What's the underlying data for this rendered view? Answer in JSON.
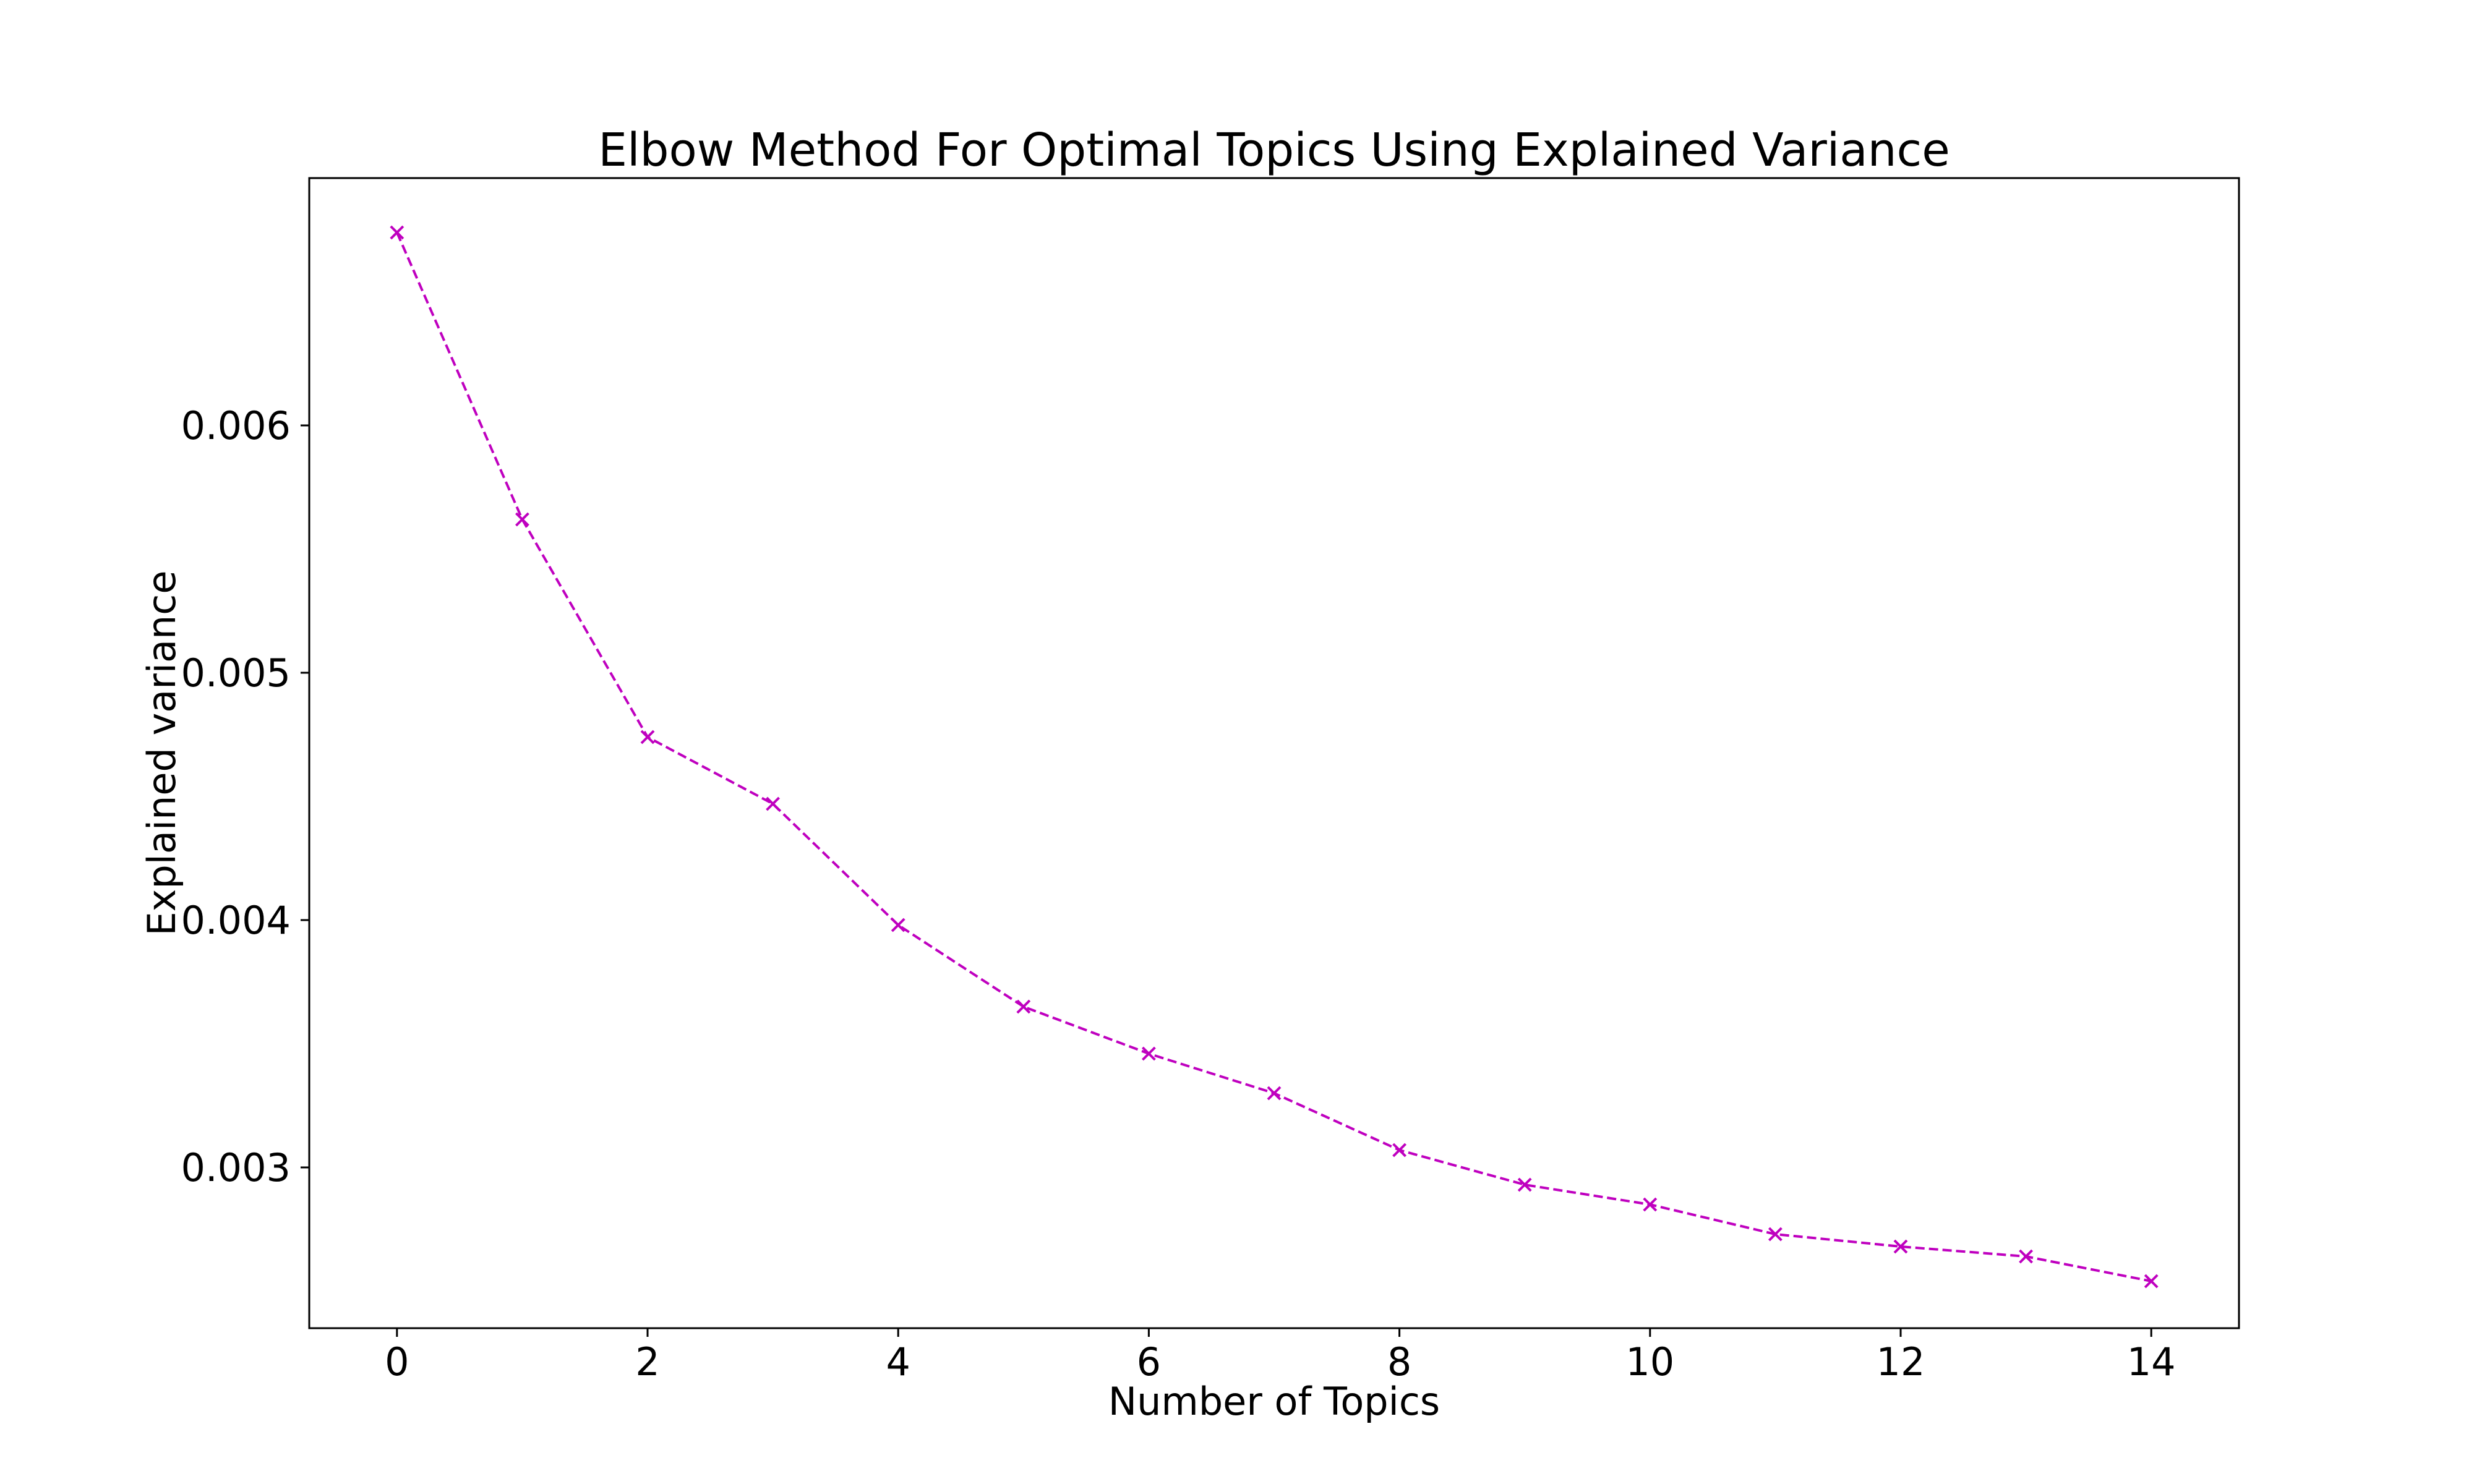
{
  "chart_data": {
    "type": "line",
    "title": "Elbow Method For Optimal Topics Using Explained Variance",
    "xlabel": "Number of Topics",
    "ylabel": "Explained variance",
    "x": [
      0,
      1,
      2,
      3,
      4,
      5,
      6,
      7,
      8,
      9,
      10,
      11,
      12,
      13,
      14
    ],
    "series": [
      {
        "values": [
          0.00678,
          0.00562,
          0.00474,
          0.00447,
          0.00398,
          0.00365,
          0.00346,
          0.0033,
          0.00307,
          0.00293,
          0.00285,
          0.00273,
          0.00268,
          0.00264,
          0.00254
        ],
        "color": "#bf00bf",
        "line_style": "dashed",
        "marker": "x"
      }
    ],
    "xlim": [
      -0.7,
      14.7
    ],
    "ylim": [
      0.00235,
      0.007
    ],
    "x_ticks": [
      0,
      2,
      4,
      6,
      8,
      10,
      12,
      14
    ],
    "x_tick_labels": [
      "0",
      "2",
      "4",
      "6",
      "8",
      "10",
      "12",
      "14"
    ],
    "y_ticks": [
      0.003,
      0.004,
      0.005,
      0.006
    ],
    "y_tick_labels": [
      "0.003",
      "0.004",
      "0.005",
      "0.006"
    ],
    "grid": false,
    "legend": "none"
  }
}
